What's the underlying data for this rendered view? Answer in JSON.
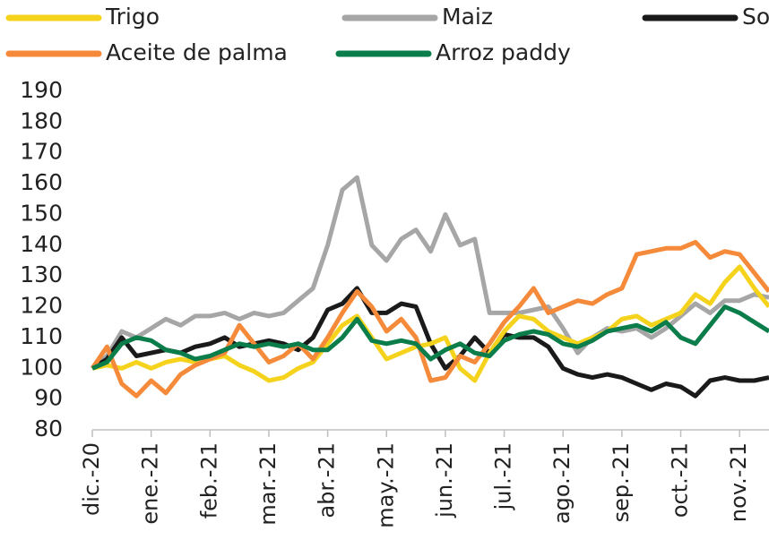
{
  "chart_data": {
    "type": "line",
    "categories": [
      "dic.-20",
      null,
      null,
      null,
      "ene.-21",
      null,
      null,
      null,
      "feb.-21",
      null,
      null,
      null,
      "mar.-21",
      null,
      null,
      null,
      "abr.-21",
      null,
      null,
      null,
      "may.-21",
      null,
      null,
      null,
      "jun.-21",
      null,
      null,
      null,
      "jul.-21",
      null,
      null,
      null,
      "ago.-21",
      null,
      null,
      null,
      "sep.-21",
      null,
      null,
      null,
      "oct.-21",
      null,
      null,
      null,
      "nov.-21",
      null,
      null
    ],
    "series": [
      {
        "name": "Maiz",
        "color": "#a6a6a6",
        "values": [
          100,
          104,
          112,
          110,
          113,
          116,
          114,
          117,
          117,
          118,
          116,
          118,
          117,
          118,
          122,
          126,
          140,
          158,
          162,
          140,
          135,
          142,
          145,
          138,
          150,
          140,
          142,
          118,
          118,
          118,
          119,
          120,
          113,
          105,
          110,
          113,
          112,
          113,
          110,
          113,
          117,
          121,
          118,
          122,
          122,
          124,
          123
        ]
      },
      {
        "name": "Soja",
        "color": "#1a1a1a",
        "values": [
          100,
          103,
          110,
          104,
          105,
          106,
          105,
          107,
          108,
          110,
          107,
          108,
          109,
          108,
          106,
          110,
          119,
          121,
          126,
          118,
          118,
          121,
          120,
          108,
          100,
          104,
          110,
          105,
          111,
          110,
          110,
          107,
          100,
          98,
          97,
          98,
          97,
          95,
          93,
          95,
          94,
          91,
          96,
          97,
          96,
          96,
          97
        ]
      },
      {
        "name": "Trigo",
        "color": "#f5d31c",
        "values": [
          100,
          101,
          100,
          102,
          100,
          102,
          103,
          102,
          103,
          104,
          101,
          99,
          96,
          97,
          100,
          102,
          108,
          114,
          117,
          110,
          103,
          105,
          107,
          108,
          110,
          100,
          96,
          105,
          112,
          117,
          116,
          112,
          110,
          108,
          110,
          112,
          116,
          117,
          114,
          116,
          118,
          124,
          121,
          128,
          133,
          126,
          120
        ]
      },
      {
        "name": "Aceite de palma",
        "color": "#f58a3a",
        "values": [
          100,
          107,
          95,
          91,
          96,
          92,
          98,
          101,
          103,
          105,
          114,
          108,
          102,
          104,
          108,
          103,
          110,
          118,
          125,
          120,
          112,
          116,
          110,
          96,
          97,
          104,
          102,
          108,
          115,
          120,
          126,
          118,
          120,
          122,
          121,
          124,
          126,
          137,
          138,
          139,
          139,
          141,
          136,
          138,
          137,
          131,
          125
        ]
      },
      {
        "name": "Arroz paddy",
        "color": "#0a7d4a",
        "values": [
          100,
          102,
          108,
          110,
          109,
          106,
          105,
          103,
          104,
          106,
          108,
          107,
          108,
          107,
          108,
          106,
          106,
          110,
          116,
          109,
          108,
          109,
          108,
          103,
          106,
          108,
          105,
          104,
          109,
          111,
          112,
          111,
          108,
          107,
          109,
          112,
          113,
          114,
          112,
          115,
          110,
          108,
          114,
          120,
          118,
          115,
          112
        ]
      }
    ],
    "ylim": [
      80,
      190
    ],
    "yticks": [
      80,
      90,
      100,
      110,
      120,
      130,
      140,
      150,
      160,
      170,
      180,
      190
    ]
  }
}
